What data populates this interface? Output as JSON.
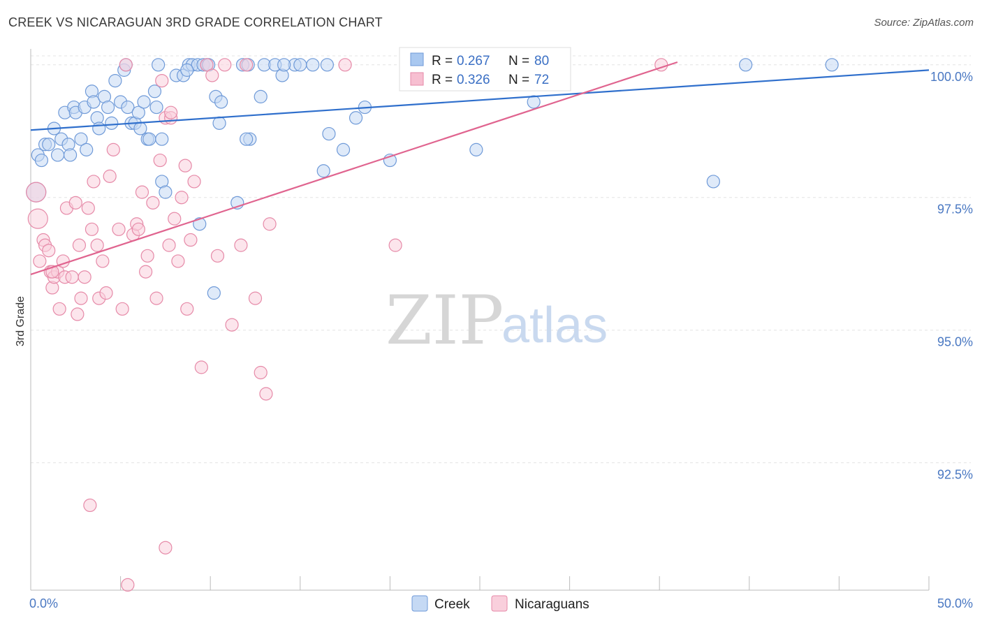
{
  "title": "CREEK VS NICARAGUAN 3RD GRADE CORRELATION CHART",
  "source": "Source: ZipAtlas.com",
  "watermark": {
    "zip": "ZIP",
    "atlas": "atlas"
  },
  "chart_data": {
    "type": "scatter",
    "ylabel": "3rd Grade",
    "xlim": [
      0,
      50
    ],
    "ylim": [
      90.1,
      100.3
    ],
    "x_tick_labels": [
      "0.0%",
      "50.0%"
    ],
    "y_ticks": [
      {
        "value": 100.0,
        "label": "100.0%"
      },
      {
        "value": 97.5,
        "label": "97.5%"
      },
      {
        "value": 95.0,
        "label": "95.0%"
      },
      {
        "value": 92.5,
        "label": "92.5%"
      }
    ],
    "legend_stats": [
      {
        "r_label": "R =",
        "r_value": "0.267",
        "n_label": "N =",
        "n_value": "80",
        "color": "#a9c8f0",
        "border": "#6f9ad8"
      },
      {
        "r_label": "R =",
        "r_value": "0.326",
        "n_label": "N =",
        "n_value": "72",
        "color": "#f7bfd1",
        "border": "#e68aa8"
      }
    ],
    "series": [
      {
        "name": "Creek",
        "fill": "#c5d9f4",
        "stroke": "#6f9ad8",
        "trend_color": "#2f6fcc",
        "trend": {
          "x1": 0,
          "y1": 98.77,
          "x2": 50,
          "y2": 99.9
        },
        "points": [
          [
            0.4,
            98.3
          ],
          [
            0.6,
            98.2
          ],
          [
            0.8,
            98.5
          ],
          [
            1.0,
            98.5
          ],
          [
            1.3,
            98.8
          ],
          [
            1.5,
            98.3
          ],
          [
            1.7,
            98.6
          ],
          [
            1.9,
            99.1
          ],
          [
            2.1,
            98.5
          ],
          [
            2.2,
            98.3
          ],
          [
            2.4,
            99.2
          ],
          [
            2.5,
            99.1
          ],
          [
            2.8,
            98.6
          ],
          [
            3.0,
            99.2
          ],
          [
            3.1,
            98.4
          ],
          [
            3.4,
            99.5
          ],
          [
            3.5,
            99.3
          ],
          [
            3.7,
            99.0
          ],
          [
            3.8,
            98.8
          ],
          [
            4.1,
            99.4
          ],
          [
            4.3,
            99.2
          ],
          [
            4.5,
            98.9
          ],
          [
            4.7,
            99.7
          ],
          [
            5.0,
            99.3
          ],
          [
            5.2,
            99.9
          ],
          [
            5.4,
            99.2
          ],
          [
            5.6,
            98.9
          ],
          [
            5.8,
            98.9
          ],
          [
            6.0,
            99.1
          ],
          [
            6.1,
            98.8
          ],
          [
            6.3,
            99.3
          ],
          [
            6.5,
            98.6
          ],
          [
            6.9,
            99.5
          ],
          [
            7.0,
            99.2
          ],
          [
            7.3,
            98.6
          ],
          [
            7.3,
            97.8
          ],
          [
            7.5,
            97.6
          ],
          [
            8.1,
            99.8
          ],
          [
            8.5,
            99.8
          ],
          [
            8.8,
            100.0
          ],
          [
            9.0,
            100.0
          ],
          [
            9.3,
            100.0
          ],
          [
            9.4,
            97.0
          ],
          [
            9.6,
            100.0
          ],
          [
            9.8,
            100.0
          ],
          [
            10.3,
            99.4
          ],
          [
            10.5,
            98.9
          ],
          [
            10.6,
            99.3
          ],
          [
            11.5,
            97.4
          ],
          [
            11.8,
            100.0
          ],
          [
            12.1,
            100.0
          ],
          [
            12.2,
            98.6
          ],
          [
            12.8,
            99.4
          ],
          [
            13.0,
            100.0
          ],
          [
            13.6,
            100.0
          ],
          [
            14.0,
            99.8
          ],
          [
            14.7,
            100.0
          ],
          [
            15.7,
            100.0
          ],
          [
            16.3,
            98.0
          ],
          [
            16.6,
            98.7
          ],
          [
            17.4,
            98.4
          ],
          [
            18.1,
            99.0
          ],
          [
            18.6,
            99.2
          ],
          [
            20.0,
            98.2
          ],
          [
            24.8,
            98.4
          ],
          [
            28.0,
            99.3
          ],
          [
            38.0,
            97.8
          ],
          [
            39.8,
            100.0
          ],
          [
            44.6,
            100.0
          ],
          [
            5.3,
            100.0
          ],
          [
            7.1,
            100.0
          ],
          [
            9.9,
            100.0
          ],
          [
            14.1,
            100.0
          ],
          [
            15.0,
            100.0
          ],
          [
            16.5,
            100.0
          ],
          [
            8.7,
            99.9
          ],
          [
            10.2,
            95.7
          ],
          [
            0.3,
            97.6
          ],
          [
            12.0,
            98.6
          ],
          [
            6.6,
            98.6
          ]
        ]
      },
      {
        "name": "Nicaraguans",
        "fill": "#f9cfdc",
        "stroke": "#e68aa8",
        "trend_color": "#e0648f",
        "trend": {
          "x1": 0,
          "y1": 96.05,
          "x2": 36,
          "y2": 100.05
        },
        "points": [
          [
            0.3,
            97.6
          ],
          [
            0.4,
            97.1
          ],
          [
            0.5,
            96.3
          ],
          [
            0.7,
            96.7
          ],
          [
            0.8,
            96.6
          ],
          [
            1.0,
            96.5
          ],
          [
            1.1,
            96.1
          ],
          [
            1.2,
            95.8
          ],
          [
            1.3,
            96.0
          ],
          [
            1.5,
            96.1
          ],
          [
            1.6,
            95.4
          ],
          [
            1.8,
            96.3
          ],
          [
            1.9,
            96.0
          ],
          [
            2.0,
            97.3
          ],
          [
            2.3,
            96.0
          ],
          [
            2.5,
            97.4
          ],
          [
            2.6,
            95.3
          ],
          [
            2.7,
            96.6
          ],
          [
            2.8,
            95.6
          ],
          [
            3.0,
            96.0
          ],
          [
            3.2,
            97.3
          ],
          [
            3.3,
            91.7
          ],
          [
            3.5,
            97.8
          ],
          [
            3.7,
            96.6
          ],
          [
            3.8,
            95.6
          ],
          [
            4.0,
            96.3
          ],
          [
            4.2,
            95.7
          ],
          [
            4.4,
            97.9
          ],
          [
            4.6,
            98.4
          ],
          [
            4.9,
            96.9
          ],
          [
            5.1,
            95.4
          ],
          [
            5.3,
            100.0
          ],
          [
            5.7,
            96.8
          ],
          [
            5.9,
            97.0
          ],
          [
            6.0,
            96.9
          ],
          [
            6.2,
            97.6
          ],
          [
            6.4,
            96.1
          ],
          [
            6.5,
            96.4
          ],
          [
            6.8,
            97.4
          ],
          [
            7.0,
            95.6
          ],
          [
            7.2,
            98.2
          ],
          [
            7.3,
            99.7
          ],
          [
            7.5,
            99.0
          ],
          [
            7.7,
            96.6
          ],
          [
            7.8,
            99.0
          ],
          [
            8.0,
            97.1
          ],
          [
            8.2,
            96.3
          ],
          [
            8.4,
            97.5
          ],
          [
            8.6,
            98.1
          ],
          [
            8.7,
            95.4
          ],
          [
            8.9,
            96.7
          ],
          [
            9.1,
            97.8
          ],
          [
            9.5,
            94.3
          ],
          [
            9.8,
            100.0
          ],
          [
            10.1,
            99.8
          ],
          [
            10.4,
            96.4
          ],
          [
            10.8,
            100.0
          ],
          [
            11.2,
            95.1
          ],
          [
            11.7,
            96.6
          ],
          [
            12.0,
            100.0
          ],
          [
            12.5,
            95.6
          ],
          [
            12.8,
            94.2
          ],
          [
            13.1,
            93.8
          ],
          [
            13.3,
            97.0
          ],
          [
            17.5,
            100.0
          ],
          [
            20.3,
            96.6
          ],
          [
            35.1,
            100.0
          ],
          [
            7.5,
            90.9
          ],
          [
            5.4,
            90.2
          ],
          [
            3.4,
            96.9
          ],
          [
            7.8,
            99.1
          ],
          [
            1.2,
            96.1
          ]
        ]
      }
    ]
  }
}
